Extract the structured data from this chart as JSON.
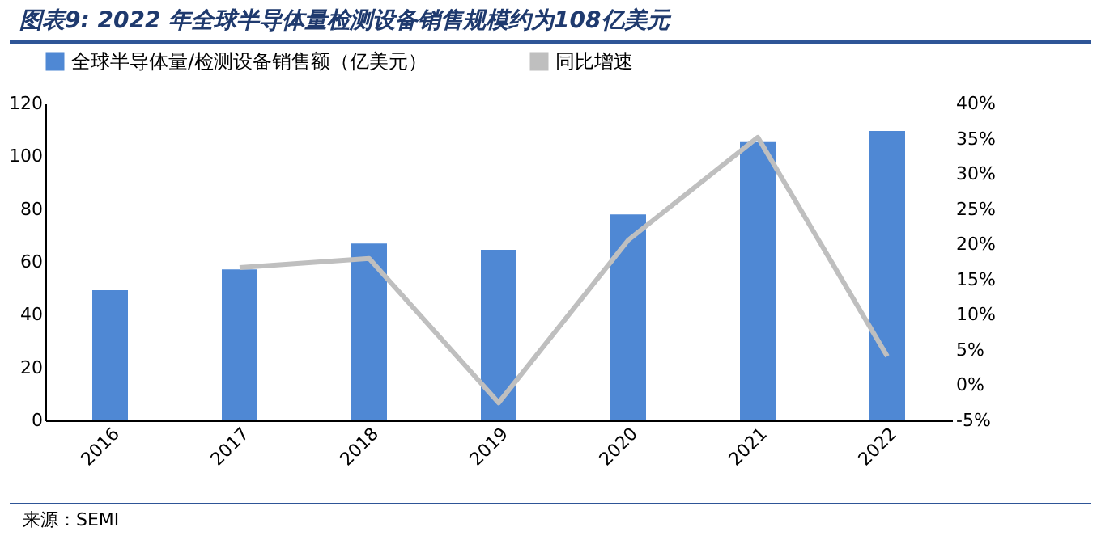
{
  "chart_data": {
    "type": "bar",
    "title": "图表9: 2022 年全球半导体量检测设备销售规模约为108亿美元",
    "categories": [
      "2016",
      "2017",
      "2018",
      "2019",
      "2020",
      "2021",
      "2022"
    ],
    "series": [
      {
        "name": "全球半导体量/检测设备销售额（亿美元）",
        "color": "#4f88d4",
        "values": [
          49.3,
          57.2,
          67,
          64.6,
          78,
          105.4,
          109.6
        ]
      },
      {
        "name": "同比增速",
        "type": "line",
        "axis": "y2",
        "color": "#bfbfbf",
        "values": [
          null,
          16.7,
          18.0,
          -2.5,
          20.6,
          35.2,
          4.1
        ]
      }
    ],
    "ylim": [
      0,
      120
    ],
    "yticks": [
      0,
      20,
      40,
      60,
      80,
      100,
      120
    ],
    "y2lim": [
      -5,
      40
    ],
    "y2ticks": [
      {
        "value": -5,
        "label": "-5%"
      },
      {
        "value": 0,
        "label": "0%"
      },
      {
        "value": 5,
        "label": "5%"
      },
      {
        "value": 10,
        "label": "10%"
      },
      {
        "value": 15,
        "label": "15%"
      },
      {
        "value": 20,
        "label": "20%"
      },
      {
        "value": 25,
        "label": "25%"
      },
      {
        "value": 30,
        "label": "30%"
      },
      {
        "value": 35,
        "label": "35%"
      },
      {
        "value": 40,
        "label": "40%"
      }
    ],
    "legend": "top",
    "grid": false,
    "annotations": [
      "来源：SEMI"
    ]
  }
}
